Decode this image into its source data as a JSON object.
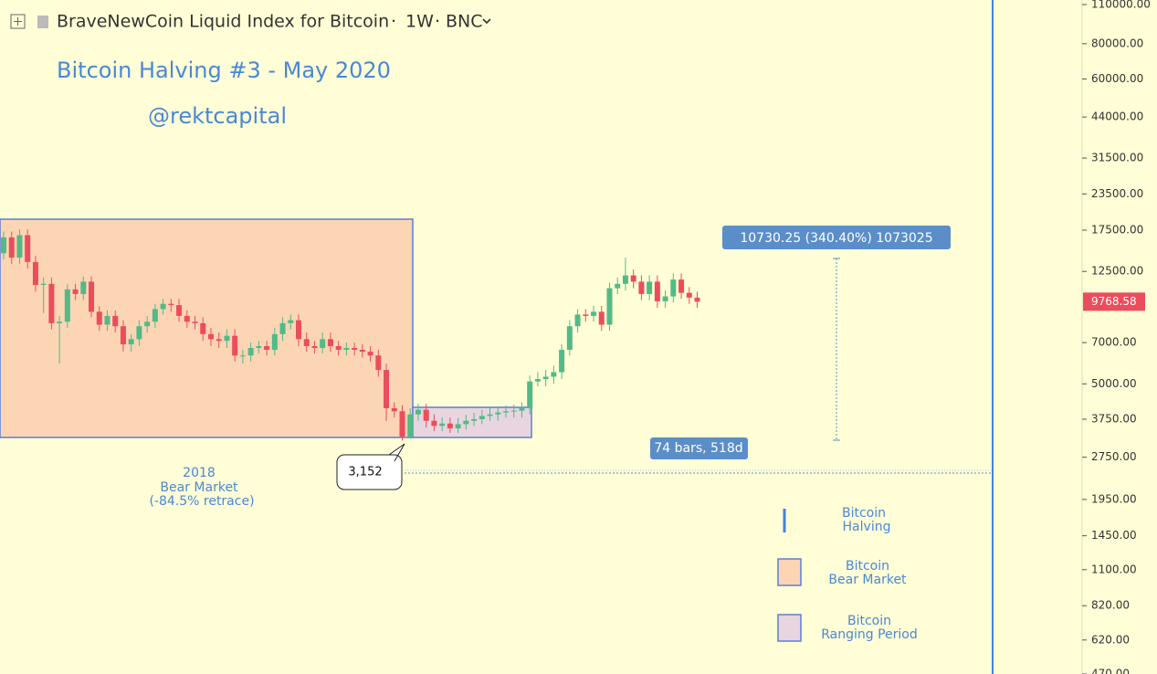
{
  "header": {
    "title": "BraveNewCoin Liquid Index for Bitcoin",
    "separator": "·",
    "interval": "1W",
    "exchange": "BNC"
  },
  "chart_data": {
    "type": "candlestick",
    "log_scale": true,
    "grid": false,
    "title": "Bitcoin Halving #3 - May 2020",
    "subtitle": "@rektcapital",
    "up_color": "#53b987",
    "down_color": "#eb4d5c",
    "ylim": [
      470,
      114200
    ],
    "yticks": [
      {
        "value": 110000,
        "label": "110000.00"
      },
      {
        "value": 80000,
        "label": "80000.00"
      },
      {
        "value": 60000,
        "label": "60000.00"
      },
      {
        "value": 44000,
        "label": "44000.00"
      },
      {
        "value": 31500,
        "label": "31500.00"
      },
      {
        "value": 23500,
        "label": "23500.00"
      },
      {
        "value": 17500,
        "label": "17500.00"
      },
      {
        "value": 12500,
        "label": "12500.00"
      },
      {
        "value": 7000,
        "label": "7000.00"
      },
      {
        "value": 5000,
        "label": "5000.00"
      },
      {
        "value": 3750,
        "label": "3750.00"
      },
      {
        "value": 2750,
        "label": "2750.00"
      },
      {
        "value": 1950,
        "label": "1950.00"
      },
      {
        "value": 1450,
        "label": "1450.00"
      },
      {
        "value": 1100,
        "label": "1100.00"
      },
      {
        "value": 820,
        "label": "820.00"
      },
      {
        "value": 620,
        "label": "620.00"
      },
      {
        "value": 470,
        "label": "470.00"
      }
    ],
    "open": [
      14500,
      16500,
      14000,
      16800,
      13500,
      11200,
      11300,
      8200,
      8300,
      10800,
      10400,
      11500,
      9000,
      8100,
      8700,
      8000,
      6900,
      7200,
      8000,
      8300,
      9200,
      9600,
      9500,
      8700,
      8300,
      8200,
      7500,
      7200,
      7100,
      7400,
      6300,
      6300,
      6700,
      6800,
      6600,
      7500,
      8200,
      8400,
      7200,
      6800,
      6700,
      7200,
      6800,
      6600,
      6700,
      6600,
      6500,
      6300,
      5600,
      4100,
      4000,
      3250,
      3900,
      4050,
      3700,
      3550,
      3620,
      3480,
      3600,
      3700,
      3750,
      3850,
      3900,
      3960,
      4000,
      4020,
      4100,
      5100,
      5200,
      5300,
      5500,
      6600,
      8000,
      8800,
      8700,
      9000,
      8100,
      10900,
      11300,
      12100,
      11500,
      10400,
      11500,
      9800,
      10200,
      11700,
      10500,
      10100
    ],
    "high": [
      17300,
      17300,
      17600,
      17600,
      14200,
      11900,
      11900,
      8700,
      11300,
      11300,
      12000,
      12000,
      9400,
      9100,
      9100,
      8400,
      7500,
      8400,
      8700,
      9600,
      10000,
      10000,
      10000,
      9100,
      8700,
      8600,
      7900,
      7600,
      7800,
      7800,
      6600,
      7000,
      7100,
      7100,
      7900,
      8600,
      8800,
      8800,
      7600,
      7100,
      7600,
      7600,
      7100,
      7000,
      7000,
      6900,
      6800,
      6600,
      5900,
      4300,
      4200,
      4100,
      4250,
      4250,
      3900,
      3800,
      3800,
      3780,
      3890,
      3940,
      4050,
      4100,
      4160,
      4200,
      4220,
      4300,
      5350,
      5500,
      5600,
      5800,
      6900,
      8400,
      9200,
      9200,
      9450,
      9450,
      11400,
      11900,
      14000,
      12700,
      12100,
      12100,
      12100,
      10700,
      12300,
      12300,
      11000,
      10600
    ],
    "low": [
      13800,
      13300,
      13300,
      12800,
      10600,
      8900,
      7800,
      5900,
      7900,
      9900,
      9900,
      8600,
      7700,
      7700,
      7600,
      6500,
      6500,
      6800,
      7600,
      7900,
      8800,
      9000,
      8300,
      7900,
      7800,
      7100,
      6800,
      6700,
      6700,
      6000,
      5900,
      6000,
      6400,
      6300,
      6300,
      7100,
      7800,
      6800,
      6500,
      6400,
      6400,
      6500,
      6300,
      6300,
      6300,
      6200,
      6000,
      5300,
      3700,
      3800,
      3152,
      3200,
      3700,
      3500,
      3400,
      3400,
      3350,
      3350,
      3450,
      3550,
      3600,
      3700,
      3700,
      3800,
      3800,
      3800,
      3900,
      4900,
      4900,
      5000,
      5200,
      6300,
      7600,
      8300,
      8300,
      7700,
      7700,
      10400,
      10700,
      10900,
      9900,
      9900,
      9300,
      9300,
      9700,
      10000,
      9600,
      9300
    ],
    "close": [
      16500,
      14000,
      16800,
      13500,
      11200,
      11300,
      8200,
      8300,
      10800,
      10400,
      11500,
      9000,
      8100,
      8700,
      8000,
      6900,
      7200,
      8000,
      8300,
      9200,
      9600,
      9500,
      8700,
      8300,
      8200,
      7500,
      7200,
      7100,
      7400,
      6300,
      6300,
      6700,
      6800,
      6600,
      7500,
      8200,
      8400,
      7200,
      6800,
      6700,
      7200,
      6800,
      6600,
      6700,
      6600,
      6500,
      6300,
      5600,
      4100,
      4000,
      3250,
      3900,
      4050,
      3700,
      3550,
      3620,
      3480,
      3600,
      3700,
      3750,
      3850,
      3900,
      3960,
      4000,
      4020,
      4100,
      5100,
      5200,
      5300,
      5500,
      6600,
      8000,
      8800,
      8700,
      9000,
      8100,
      10900,
      11300,
      12100,
      11500,
      10400,
      11500,
      9800,
      10200,
      11700,
      10500,
      10100,
      9768.58
    ],
    "annotations": {
      "bear_market": [
        "2018",
        "Bear Market",
        "(-84.5% retrace)"
      ],
      "low_callout": "3,152",
      "measure_price": "10730.25 (340.40%) 1073025",
      "measure_time": "74 bars, 518d"
    },
    "legend": [
      {
        "name": [
          "Bitcoin",
          "Halving"
        ]
      },
      {
        "name": [
          "Bitcoin",
          "Bear Market"
        ],
        "color": "#fcd5b4"
      },
      {
        "name": [
          "Bitcoin",
          "Ranging Period"
        ],
        "color": "#e8d5e0"
      }
    ]
  }
}
